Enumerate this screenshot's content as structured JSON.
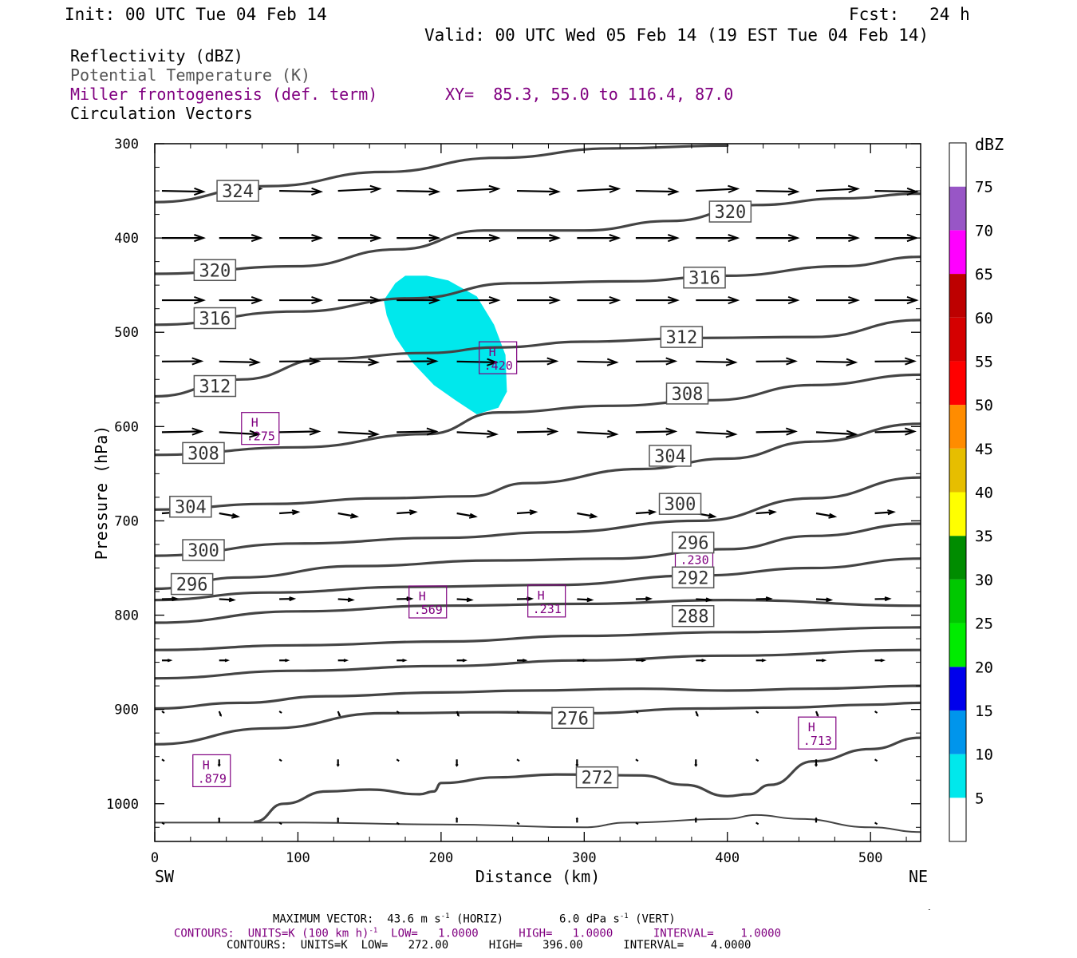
{
  "header": {
    "init": "Init: 00 UTC Tue 04 Feb 14",
    "fcst": "Fcst:   24 h",
    "valid": "Valid: 00 UTC Wed 05 Feb 14 (19 EST Tue 04 Feb 14)"
  },
  "fields": {
    "reflectivity": "Reflectivity (dBZ)",
    "theta": "Potential Temperature (K)",
    "miller": "Miller frontogenesis (def. term)",
    "xy": "XY=  85.3, 55.0 to 116.4, 87.0",
    "vectors": "Circulation Vectors"
  },
  "colors": {
    "theta": "#444444",
    "miller": "#800080",
    "refl_shade": "#00e8ec",
    "arrow": "#000000"
  },
  "chart_data": {
    "type": "contour-cross-section",
    "xlabel": "Distance (km)",
    "ylabel": "Pressure (hPa)",
    "x_ticks": [
      0,
      100,
      200,
      300,
      400,
      500
    ],
    "y_ticks": [
      300,
      400,
      500,
      600,
      700,
      800,
      900,
      1000
    ],
    "xlim": [
      0,
      535
    ],
    "ylim": [
      300,
      1040
    ],
    "x_end_labels": {
      "left": "SW",
      "right": "NE"
    },
    "theta_contours": [
      {
        "label": "324",
        "pts": [
          [
            0,
            362
          ],
          [
            80,
            345
          ],
          [
            160,
            330
          ],
          [
            240,
            315
          ],
          [
            320,
            305
          ],
          [
            400,
            302
          ]
        ]
      },
      {
        "label": "320",
        "pts": [
          [
            0,
            438
          ],
          [
            100,
            430
          ],
          [
            170,
            412
          ],
          [
            230,
            392
          ],
          [
            300,
            392
          ],
          [
            360,
            382
          ],
          [
            420,
            365
          ],
          [
            480,
            358
          ],
          [
            535,
            353
          ]
        ]
      },
      {
        "label": "316",
        "pts": [
          [
            0,
            492
          ],
          [
            100,
            478
          ],
          [
            180,
            464
          ],
          [
            250,
            448
          ],
          [
            330,
            446
          ],
          [
            400,
            440
          ],
          [
            480,
            430
          ],
          [
            535,
            420
          ]
        ]
      },
      {
        "label": "312",
        "pts": [
          [
            0,
            568
          ],
          [
            60,
            550
          ],
          [
            120,
            528
          ],
          [
            190,
            522
          ],
          [
            240,
            516
          ],
          [
            300,
            510
          ],
          [
            380,
            506
          ],
          [
            460,
            505
          ],
          [
            535,
            487
          ]
        ]
      },
      {
        "label": "308",
        "pts": [
          [
            0,
            630
          ],
          [
            100,
            622
          ],
          [
            190,
            608
          ],
          [
            240,
            585
          ],
          [
            320,
            578
          ],
          [
            390,
            572
          ],
          [
            460,
            556
          ],
          [
            535,
            545
          ]
        ]
      },
      {
        "label": "304",
        "pts": [
          [
            0,
            688
          ],
          [
            80,
            682
          ],
          [
            160,
            676
          ],
          [
            220,
            674
          ],
          [
            260,
            660
          ],
          [
            340,
            645
          ],
          [
            400,
            634
          ],
          [
            460,
            616
          ],
          [
            535,
            597
          ]
        ]
      },
      {
        "label": "300",
        "pts": [
          [
            0,
            737
          ],
          [
            100,
            724
          ],
          [
            200,
            718
          ],
          [
            280,
            712
          ],
          [
            380,
            700
          ],
          [
            460,
            676
          ],
          [
            535,
            654
          ]
        ]
      },
      {
        "label": "296",
        "pts": [
          [
            0,
            772
          ],
          [
            60,
            760
          ],
          [
            140,
            748
          ],
          [
            240,
            742
          ],
          [
            320,
            740
          ],
          [
            400,
            730
          ],
          [
            460,
            716
          ],
          [
            535,
            703
          ]
        ]
      },
      {
        "label": "292",
        "pts": [
          [
            0,
            784
          ],
          [
            80,
            776
          ],
          [
            180,
            770
          ],
          [
            280,
            768
          ],
          [
            380,
            758
          ],
          [
            460,
            750
          ],
          [
            535,
            740
          ]
        ]
      },
      {
        "label": "288",
        "pts": [
          [
            0,
            808
          ],
          [
            100,
            796
          ],
          [
            200,
            790
          ],
          [
            300,
            788
          ],
          [
            400,
            784
          ],
          [
            535,
            790
          ]
        ]
      },
      {
        "label": "",
        "pts": [
          [
            0,
            837
          ],
          [
            100,
            832
          ],
          [
            200,
            828
          ],
          [
            300,
            822
          ],
          [
            400,
            818
          ],
          [
            535,
            813
          ]
        ]
      },
      {
        "label": "",
        "pts": [
          [
            0,
            867
          ],
          [
            100,
            859
          ],
          [
            200,
            854
          ],
          [
            300,
            848
          ],
          [
            400,
            843
          ],
          [
            535,
            837
          ]
        ]
      },
      {
        "label": "",
        "pts": [
          [
            0,
            899
          ],
          [
            60,
            893
          ],
          [
            120,
            886
          ],
          [
            200,
            882
          ],
          [
            260,
            880
          ],
          [
            340,
            878
          ],
          [
            400,
            880
          ],
          [
            460,
            878
          ],
          [
            535,
            875
          ]
        ]
      },
      {
        "label": "276",
        "pts": [
          [
            0,
            937
          ],
          [
            80,
            920
          ],
          [
            160,
            904
          ],
          [
            240,
            903
          ],
          [
            300,
            904
          ],
          [
            380,
            899
          ],
          [
            440,
            898
          ],
          [
            500,
            895
          ],
          [
            535,
            893
          ]
        ]
      },
      {
        "label": "272",
        "pts": [
          [
            70,
            1019
          ],
          [
            90,
            1000
          ],
          [
            120,
            987
          ],
          [
            150,
            985
          ],
          [
            185,
            990
          ],
          [
            195,
            987
          ],
          [
            200,
            978
          ],
          [
            240,
            972
          ],
          [
            280,
            969
          ],
          [
            340,
            970
          ],
          [
            370,
            980
          ],
          [
            400,
            992
          ],
          [
            415,
            990
          ],
          [
            430,
            980
          ],
          [
            460,
            955
          ],
          [
            500,
            942
          ],
          [
            535,
            930
          ]
        ]
      },
      {
        "label": "",
        "pts": [
          [
            0,
            1020
          ],
          [
            100,
            1020
          ],
          [
            200,
            1022
          ],
          [
            300,
            1025
          ],
          [
            330,
            1020
          ],
          [
            400,
            1016
          ],
          [
            420,
            1012
          ],
          [
            450,
            1016
          ],
          [
            500,
            1025
          ],
          [
            535,
            1030
          ]
        ]
      }
    ],
    "theta_label_positions": [
      {
        "label": "324",
        "x": 58,
        "p": 350
      },
      {
        "label": "320",
        "x": 42,
        "p": 434
      },
      {
        "label": "320",
        "x": 402,
        "p": 372
      },
      {
        "label": "316",
        "x": 42,
        "p": 485
      },
      {
        "label": "316",
        "x": 384,
        "p": 442
      },
      {
        "label": "312",
        "x": 42,
        "p": 557
      },
      {
        "label": "312",
        "x": 368,
        "p": 505
      },
      {
        "label": "308",
        "x": 34,
        "p": 628
      },
      {
        "label": "308",
        "x": 372,
        "p": 565
      },
      {
        "label": "304",
        "x": 25,
        "p": 685
      },
      {
        "label": "304",
        "x": 360,
        "p": 631
      },
      {
        "label": "300",
        "x": 34,
        "p": 731
      },
      {
        "label": "300",
        "x": 367,
        "p": 682
      },
      {
        "label": "296",
        "x": 26,
        "p": 767
      },
      {
        "label": "296",
        "x": 376,
        "p": 723
      },
      {
        "label": "292",
        "x": 376,
        "p": 760
      },
      {
        "label": "288",
        "x": 376,
        "p": 801
      },
      {
        "label": "276",
        "x": 292,
        "p": 909
      },
      {
        "label": "272",
        "x": 309,
        "p": 972
      }
    ],
    "reflectivity_region": {
      "dbz": 5,
      "pts": [
        [
          160,
          466
        ],
        [
          168,
          448
        ],
        [
          175,
          440
        ],
        [
          190,
          440
        ],
        [
          205,
          445
        ],
        [
          225,
          462
        ],
        [
          237,
          492
        ],
        [
          245,
          524
        ],
        [
          246,
          563
        ],
        [
          240,
          580
        ],
        [
          225,
          587
        ],
        [
          210,
          572
        ],
        [
          195,
          556
        ],
        [
          180,
          532
        ],
        [
          168,
          505
        ],
        [
          162,
          482
        ]
      ]
    },
    "miller_maxima": [
      {
        "label": "H",
        "value": ".420",
        "x": 240,
        "p": 527
      },
      {
        "label": "H",
        "value": ".275",
        "x": 74,
        "p": 602
      },
      {
        "label": "H",
        "value": ".230",
        "x": 377,
        "p": 733
      },
      {
        "label": "H",
        "value": ".569",
        "x": 191,
        "p": 786
      },
      {
        "label": "H",
        "value": ".231",
        "x": 274,
        "p": 785
      },
      {
        "label": "H",
        "value": ".879",
        "x": 40,
        "p": 965
      },
      {
        "label": "H",
        "value": ".713",
        "x": 463,
        "p": 925
      }
    ],
    "vector_rows": [
      {
        "p": 350,
        "u": 1.0,
        "v": -0.05
      },
      {
        "p": 400,
        "u": 1.0,
        "v": 0.0
      },
      {
        "p": 466,
        "u": 1.0,
        "v": 0.0
      },
      {
        "p": 531,
        "u": 0.95,
        "v": 0.02
      },
      {
        "p": 606,
        "u": 0.95,
        "v": 0.05
      },
      {
        "p": 692,
        "u": 0.45,
        "v": 0.08
      },
      {
        "p": 783,
        "u": 0.35,
        "v": 0.02
      },
      {
        "p": 848,
        "u": 0.2,
        "v": 0.0
      },
      {
        "p": 902,
        "u": 0.04,
        "v": 0.1
      },
      {
        "p": 953,
        "u": 0.0,
        "v": 0.15
      },
      {
        "p": 1020,
        "u": 0.0,
        "v": -0.1
      }
    ],
    "vector_x": [
      5,
      45,
      87,
      128,
      169,
      211,
      253,
      295,
      336,
      378,
      420,
      462,
      503
    ],
    "colorbar": {
      "title": "dBZ",
      "levels": [
        "5",
        "10",
        "15",
        "20",
        "25",
        "30",
        "35",
        "40",
        "45",
        "50",
        "55",
        "60",
        "65",
        "70",
        "75"
      ],
      "colors": [
        "#ffffff",
        "#00e8ec",
        "#0095ec",
        "#0000ec",
        "#00ec00",
        "#00c800",
        "#008c00",
        "#ffff00",
        "#e6be00",
        "#ff8c00",
        "#ff0000",
        "#d50000",
        "#bd0000",
        "#ff00ff",
        "#9856c6",
        "#ffffff"
      ]
    },
    "footer": {
      "max_vector": "MAXIMUM VECTOR:  43.6 m s",
      "sup1": "-1",
      "horiz": " (HORIZ)",
      "vert_val": "6.0 dPa s",
      "sup2": "-1",
      "vert": " (VERT)",
      "contours1_a": "CONTOURS:  UNITS=K (100 km h)",
      "contours1_sup": "-1",
      "contours1_b": "  LOW=   1.0000      HIGH=   1.0000      INTERVAL=    1.0000",
      "contours2": "CONTOURS:  UNITS=K  LOW=   272.00      HIGH=   396.00      INTERVAL=    4.0000"
    }
  }
}
